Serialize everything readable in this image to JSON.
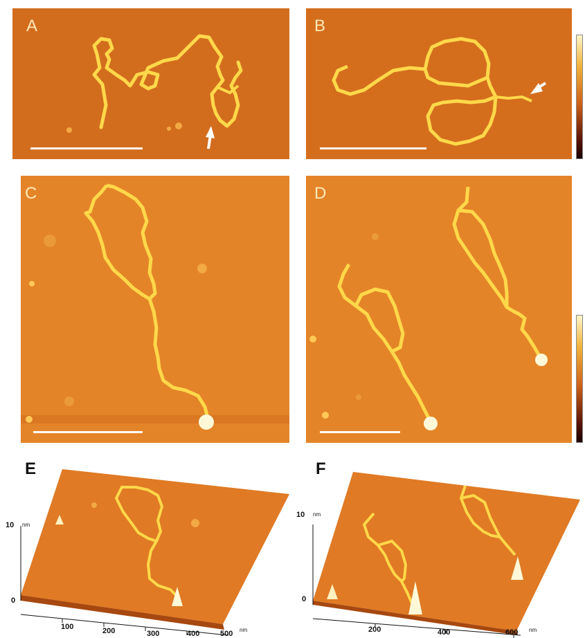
{
  "figure": {
    "panels": [
      {
        "label": "A",
        "has_arrow": true,
        "has_scale_bar": true
      },
      {
        "label": "B",
        "has_arrow": true,
        "has_scale_bar": true
      },
      {
        "label": "C",
        "has_arrow": false,
        "has_scale_bar": true
      },
      {
        "label": "D",
        "has_arrow": false,
        "has_scale_bar": true
      }
    ],
    "panel_e": {
      "label": "E",
      "z_tick_top": "10",
      "z_unit": "nm",
      "z_tick_bottom": "0",
      "x_ticks": [
        "100",
        "200",
        "300",
        "400",
        "500"
      ],
      "x_unit": "nm"
    },
    "panel_f": {
      "label": "F",
      "z_tick_top": "10",
      "z_unit": "nm",
      "z_tick_bottom": "0",
      "x_ticks": [
        "200",
        "400",
        "600"
      ],
      "x_unit": "nm"
    }
  },
  "colors": {
    "background": "#e58a2c",
    "strand": "#ffd84a",
    "peak": "#fff8d8",
    "colorbar_top": "#fff6c8",
    "colorbar_mid": "#d0621a",
    "colorbar_bottom": "#1a0000"
  }
}
